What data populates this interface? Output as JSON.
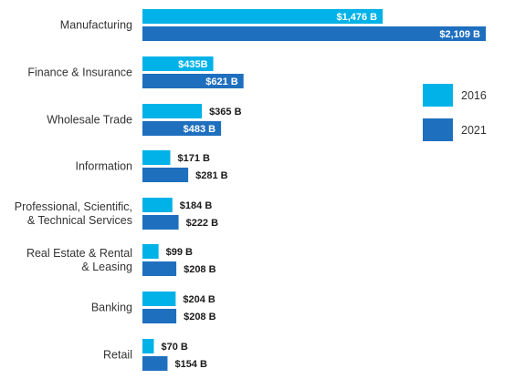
{
  "chart_data": {
    "type": "bar",
    "orientation": "horizontal",
    "categories": [
      [
        "Manufacturing"
      ],
      [
        "Finance & Insurance"
      ],
      [
        "Wholesale Trade"
      ],
      [
        "Information"
      ],
      [
        "Professional, Scientific,",
        "& Technical Services"
      ],
      [
        "Real Estate & Rental",
        "& Leasing"
      ],
      [
        "Banking"
      ],
      [
        "Retail"
      ]
    ],
    "series": [
      {
        "name": "2016",
        "color": "#00b2e8",
        "values": [
          1476,
          435,
          365,
          171,
          184,
          99,
          204,
          70
        ],
        "labels": [
          "$1,476 B",
          "$435B",
          "$365 B",
          "$171 B",
          "$184 B",
          "$99 B",
          "$204 B",
          "$70 B"
        ]
      },
      {
        "name": "2021",
        "color": "#1f6fbf",
        "values": [
          2109,
          621,
          483,
          281,
          222,
          208,
          208,
          154
        ],
        "labels": [
          "$2,109 B",
          "$621 B",
          "$483 B",
          "$281 B",
          "$222 B",
          "$208 B",
          "$208 B",
          "$154 B"
        ]
      }
    ],
    "units": "billions of dollars",
    "legend": "right",
    "grid": false
  }
}
